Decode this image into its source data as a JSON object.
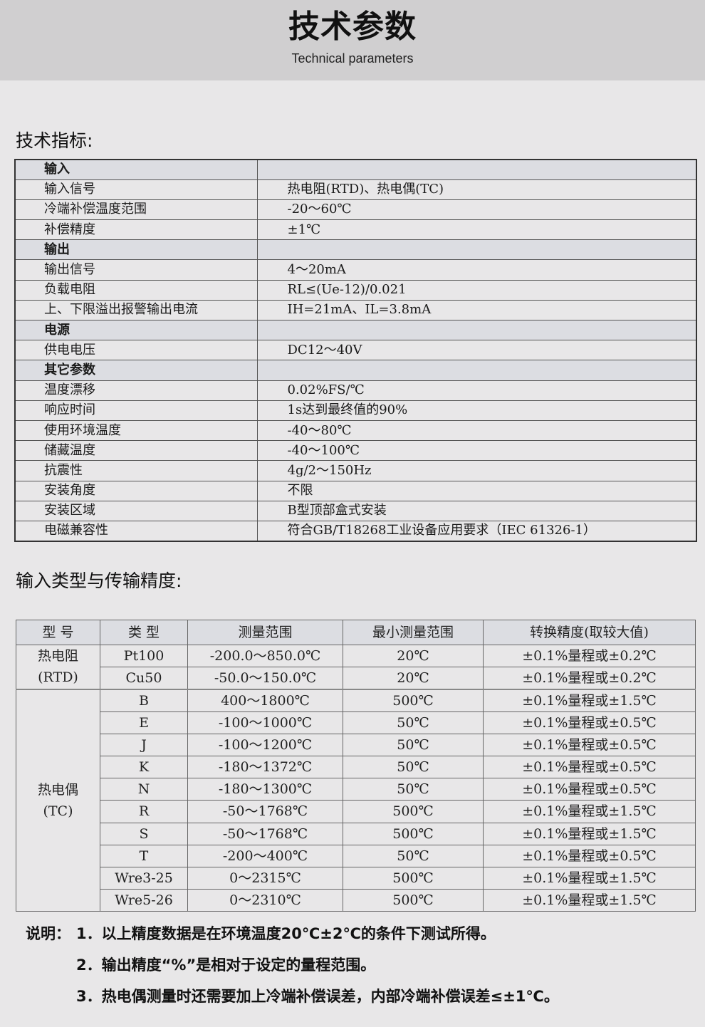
{
  "header": {
    "title": "技术参数",
    "subtitle": "Technical parameters"
  },
  "spec": {
    "title": "技术指标:",
    "rows": [
      {
        "k": "输入",
        "v": "",
        "group": true
      },
      {
        "k": "输入信号",
        "v": "热电阻(RTD)、热电偶(TC)"
      },
      {
        "k": "冷端补偿温度范围",
        "v": "-20～60℃"
      },
      {
        "k": "补偿精度",
        "v": "±1℃"
      },
      {
        "k": "输出",
        "v": "",
        "group": true
      },
      {
        "k": "输出信号",
        "v": "4～20mA"
      },
      {
        "k": "负载电阻",
        "v": "RL≤(Ue-12)/0.021"
      },
      {
        "k": "上、下限溢出报警输出电流",
        "v": "IH=21mA、IL=3.8mA"
      },
      {
        "k": "电源",
        "v": "",
        "group": true
      },
      {
        "k": "供电电压",
        "v": "DC12～40V"
      },
      {
        "k": "其它参数",
        "v": "",
        "group": true
      },
      {
        "k": "温度漂移",
        "v": "0.02%FS/℃"
      },
      {
        "k": "响应时间",
        "v": "1s达到最终值的90%"
      },
      {
        "k": "使用环境温度",
        "v": "-40～80℃"
      },
      {
        "k": "储藏温度",
        "v": "-40～100℃"
      },
      {
        "k": "抗震性",
        "v": "4g/2～150Hz"
      },
      {
        "k": "安装角度",
        "v": "不限"
      },
      {
        "k": "安装区域",
        "v": "B型顶部盒式安装"
      },
      {
        "k": "电磁兼容性",
        "v": "符合GB/T18268工业设备应用要求（IEC 61326-1）"
      }
    ]
  },
  "accuracy": {
    "title": "输入类型与传输精度:",
    "headers": [
      "型 号",
      "类 型",
      "测量范围",
      "最小测量范围",
      "转换精度(取较大值)"
    ],
    "groups": [
      {
        "name": "热电阻",
        "sub": "(RTD)",
        "rows": [
          [
            "Pt100",
            "-200.0～850.0℃",
            "20℃",
            "±0.1%量程或±0.2℃"
          ],
          [
            "Cu50",
            "-50.0～150.0℃",
            "20℃",
            "±0.1%量程或±0.2℃"
          ]
        ]
      },
      {
        "name": "热电偶",
        "sub": "(TC)",
        "rows": [
          [
            "B",
            "400～1800℃",
            "500℃",
            "±0.1%量程或±1.5℃"
          ],
          [
            "E",
            "-100～1000℃",
            "50℃",
            "±0.1%量程或±0.5℃"
          ],
          [
            "J",
            "-100～1200℃",
            "50℃",
            "±0.1%量程或±0.5℃"
          ],
          [
            "K",
            "-180～1372℃",
            "50℃",
            "±0.1%量程或±0.5℃"
          ],
          [
            "N",
            "-180～1300℃",
            "50℃",
            "±0.1%量程或±0.5℃"
          ],
          [
            "R",
            "-50～1768℃",
            "500℃",
            "±0.1%量程或±1.5℃"
          ],
          [
            "S",
            "-50～1768℃",
            "500℃",
            "±0.1%量程或±1.5℃"
          ],
          [
            "T",
            "-200～400℃",
            "50℃",
            "±0.1%量程或±0.5℃"
          ],
          [
            "Wre3-25",
            "0～2315℃",
            "500℃",
            "±0.1%量程或±1.5℃"
          ],
          [
            "Wre5-26",
            "0～2310℃",
            "500℃",
            "±0.1%量程或±1.5℃"
          ]
        ]
      }
    ]
  },
  "notes": {
    "label": "说明：",
    "items": [
      "1．以上精度数据是在环境温度20℃±2℃的条件下测试所得。",
      "2．输出精度“%”是相对于设定的量程范围。",
      "3．热电偶测量时还需要加上冷端补偿误差，内部冷端补偿误差≤±1℃。"
    ]
  }
}
